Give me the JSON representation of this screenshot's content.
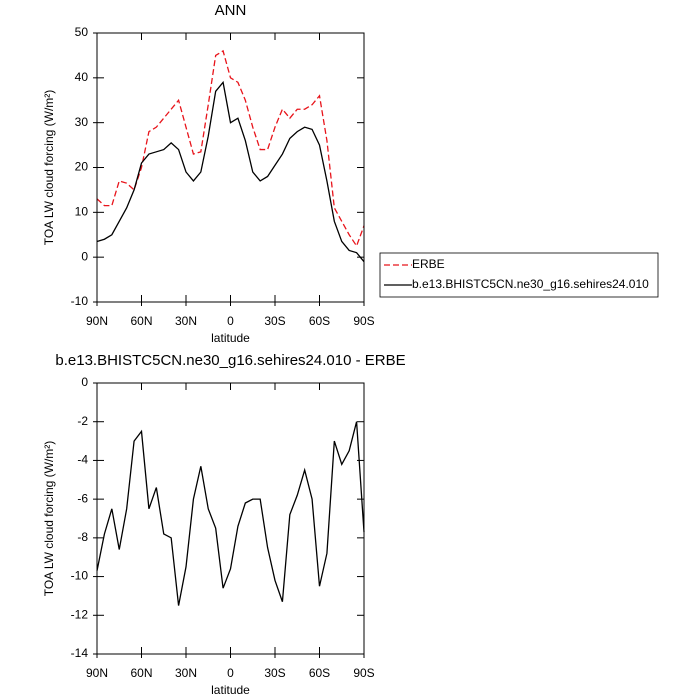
{
  "chart_data": [
    {
      "type": "line",
      "title": "ANN",
      "x_label": "latitude",
      "y_label": "TOA LW cloud forcing (W/m²)",
      "x": [
        90,
        85,
        80,
        75,
        70,
        65,
        60,
        55,
        50,
        45,
        40,
        35,
        30,
        25,
        20,
        15,
        10,
        5,
        0,
        -5,
        -10,
        -15,
        -20,
        -25,
        -30,
        -35,
        -40,
        -45,
        -50,
        -55,
        -60,
        -65,
        -70,
        -75,
        -80,
        -85,
        -90
      ],
      "series": [
        {
          "name": "ERBE",
          "color": "#e8141b",
          "line_style": "dashed",
          "values": [
            13,
            11.5,
            11.5,
            17,
            16.5,
            15,
            20,
            28,
            29,
            31,
            33,
            35,
            29,
            23,
            23.5,
            34,
            45,
            46,
            40,
            39,
            35,
            29,
            24,
            24,
            29,
            33,
            31,
            33,
            33,
            34,
            36,
            26,
            11,
            8,
            5,
            2.5,
            7
          ]
        },
        {
          "name": "b.e13.BHISTC5CN.ne30_g16.sehires24.010",
          "color": "#000000",
          "line_style": "solid",
          "values": [
            3.5,
            4,
            5,
            8,
            11,
            15,
            21,
            23,
            23.5,
            24,
            25.5,
            24,
            19,
            17,
            19,
            27,
            37,
            39,
            30,
            31,
            26,
            19,
            17,
            18,
            20.5,
            23,
            26.5,
            28,
            29,
            28.5,
            25,
            17,
            8,
            3.5,
            1.5,
            1,
            -1
          ]
        }
      ],
      "xlim": [
        90,
        -90
      ],
      "xticks": [
        {
          "value": 90,
          "label": "90N"
        },
        {
          "value": 60,
          "label": "60N"
        },
        {
          "value": 30,
          "label": "30N"
        },
        0,
        {
          "value": -30,
          "label": "30S"
        },
        {
          "value": -60,
          "label": "60S"
        },
        {
          "value": -90,
          "label": "90S"
        }
      ],
      "ylim": [
        -10,
        50
      ],
      "yticks": [
        -10,
        0,
        10,
        20,
        30,
        40,
        50
      ],
      "grid": false,
      "legend": "right"
    },
    {
      "type": "line",
      "title": "b.e13.BHISTC5CN.ne30_g16.sehires24.010 - ERBE",
      "x_label": "latitude",
      "y_label": "TOA LW cloud forcing (W/m²)",
      "x": [
        90,
        85,
        80,
        75,
        70,
        65,
        60,
        55,
        50,
        45,
        40,
        35,
        30,
        25,
        20,
        15,
        10,
        5,
        0,
        -5,
        -10,
        -15,
        -20,
        -25,
        -30,
        -35,
        -40,
        -45,
        -50,
        -55,
        -60,
        -65,
        -70,
        -75,
        -80,
        -85,
        -90
      ],
      "series": [
        {
          "color": "#000000",
          "line_style": "solid",
          "values": [
            -9.7,
            -7.8,
            -6.5,
            -8.6,
            -6.5,
            -3,
            -2.5,
            -6.5,
            -5.4,
            -7.8,
            -8,
            -11.5,
            -9.5,
            -6,
            -4.3,
            -6.5,
            -7.5,
            -10.6,
            -9.6,
            -7.4,
            -6.2,
            -6,
            -6,
            -8.5,
            -10.2,
            -11.3,
            -6.8,
            -5.8,
            -4.5,
            -6,
            -10.5,
            -8.8,
            -3,
            -4.2,
            -3.5,
            -2,
            -7.7
          ]
        }
      ],
      "xlim": [
        90,
        -90
      ],
      "xticks": [
        {
          "value": 90,
          "label": "90N"
        },
        {
          "value": 60,
          "label": "60N"
        },
        {
          "value": 30,
          "label": "30N"
        },
        0,
        {
          "value": -30,
          "label": "30S"
        },
        {
          "value": -60,
          "label": "60S"
        },
        {
          "value": -90,
          "label": "90S"
        }
      ],
      "ylim": [
        -14,
        0
      ],
      "yticks": [
        -14,
        -12,
        -10,
        -8,
        -6,
        -4,
        -2,
        0
      ],
      "grid": false
    }
  ]
}
